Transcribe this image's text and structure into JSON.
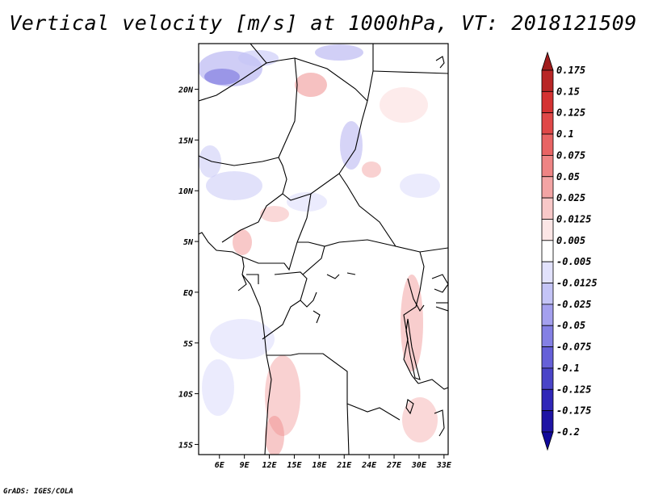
{
  "title": "Vertical velocity [m/s] at 1000hPa, VT: 2018121509",
  "footer": "GrADS: IGES/COLA",
  "map": {
    "lon_range": [
      3.5,
      33.5
    ],
    "lat_range": [
      -16,
      24.5
    ],
    "lat_labels": [
      "20N",
      "15N",
      "10N",
      "5N",
      "EQ",
      "5S",
      "10S",
      "15S"
    ],
    "lat_values": [
      20,
      15,
      10,
      5,
      0,
      -5,
      -10,
      -15
    ],
    "lon_labels": [
      "6E",
      "9E",
      "12E",
      "15E",
      "18E",
      "21E",
      "24E",
      "27E",
      "30E",
      "33E"
    ],
    "lon_values": [
      6,
      9,
      12,
      15,
      18,
      21,
      24,
      27,
      30,
      33
    ]
  },
  "colorbar": {
    "labels": [
      "0.175",
      "0.15",
      "0.125",
      "0.1",
      "0.075",
      "0.05",
      "0.025",
      "0.0125",
      "0.005",
      "-0.005",
      "-0.0125",
      "-0.025",
      "-0.05",
      "-0.075",
      "-0.1",
      "-0.125",
      "-0.175",
      "-0.2"
    ],
    "colors": [
      "#a01c1c",
      "#b82626",
      "#d43232",
      "#e04848",
      "#e86464",
      "#ee8484",
      "#f3a4a4",
      "#f8c8c8",
      "#fce6e6",
      "#ffffff",
      "#e2e2fc",
      "#c4c4f6",
      "#a4a0ee",
      "#8480e4",
      "#6660d8",
      "#4a44c8",
      "#3026b8",
      "#1e14a4",
      "#10089a"
    ]
  }
}
